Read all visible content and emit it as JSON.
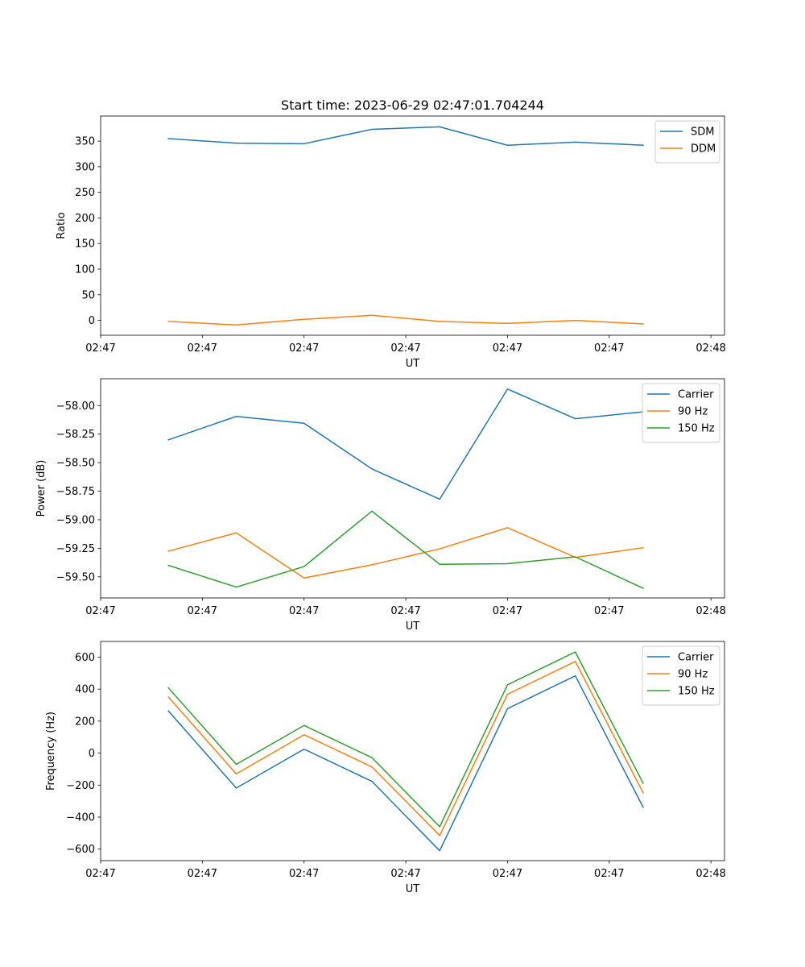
{
  "figure": {
    "title": "Start time: 2023-06-29 02:47:01.704244"
  },
  "colors": {
    "blue": "#1f77b4",
    "orange": "#ff7f0e",
    "green": "#2ca02c"
  },
  "chart_data": [
    {
      "type": "line",
      "title": "Start time: 2023-06-29 02:47:01.704244",
      "xlabel": "UT",
      "ylabel": "Ratio",
      "x": [
        1,
        2,
        3,
        4,
        5,
        6,
        7,
        8
      ],
      "xlim": [
        0,
        9.2
      ],
      "x_ticks": [
        0,
        1.5,
        3,
        4.5,
        6,
        7.5,
        9
      ],
      "x_tick_labels": [
        "02:47",
        "02:47",
        "02:47",
        "02:47",
        "02:47",
        "02:47",
        "02:48"
      ],
      "ylim": [
        -29,
        399
      ],
      "y_ticks": [
        0,
        50,
        100,
        150,
        200,
        250,
        300,
        350
      ],
      "y_tick_labels": [
        "0",
        "50",
        "100",
        "150",
        "200",
        "250",
        "300",
        "350"
      ],
      "legend": "top-right",
      "series": [
        {
          "name": "SDM",
          "color": "#1f77b4",
          "values": [
            355,
            346,
            345,
            373,
            378,
            342,
            348,
            342
          ]
        },
        {
          "name": "DDM",
          "color": "#ff7f0e",
          "values": [
            -2,
            -9,
            2,
            10,
            -2,
            -6,
            0,
            -7
          ]
        }
      ]
    },
    {
      "type": "line",
      "xlabel": "UT",
      "ylabel": "Power (dB)",
      "x": [
        1,
        2,
        3,
        4,
        5,
        6,
        7,
        8
      ],
      "xlim": [
        0,
        9.2
      ],
      "x_ticks": [
        0,
        1.5,
        3,
        4.5,
        6,
        7.5,
        9
      ],
      "x_tick_labels": [
        "02:47",
        "02:47",
        "02:47",
        "02:47",
        "02:47",
        "02:47",
        "02:48"
      ],
      "ylim": [
        -59.685,
        -57.765
      ],
      "y_ticks": [
        -58.0,
        -58.25,
        -58.5,
        -58.75,
        -59.0,
        -59.25,
        -59.5
      ],
      "y_tick_labels": [
        "−58.00",
        "−58.25",
        "−58.50",
        "−58.75",
        "−59.00",
        "−59.25",
        "−59.50"
      ],
      "legend": "top-right",
      "series": [
        {
          "name": "Carrier",
          "color": "#1f77b4",
          "values": [
            -58.3,
            -58.095,
            -58.155,
            -58.555,
            -58.82,
            -57.855,
            -58.115,
            -58.055
          ]
        },
        {
          "name": "90 Hz",
          "color": "#ff7f0e",
          "values": [
            -59.275,
            -59.115,
            -59.51,
            -59.395,
            -59.255,
            -59.07,
            -59.33,
            -59.245
          ]
        },
        {
          "name": "150 Hz",
          "color": "#2ca02c",
          "values": [
            -59.4,
            -59.59,
            -59.41,
            -58.925,
            -59.39,
            -59.385,
            -59.325,
            -59.6
          ]
        }
      ]
    },
    {
      "type": "line",
      "xlabel": "UT",
      "ylabel": "Frequency (Hz)",
      "x": [
        1,
        2,
        3,
        4,
        5,
        6,
        7,
        8
      ],
      "xlim": [
        0,
        9.2
      ],
      "x_ticks": [
        0,
        1.5,
        3,
        4.5,
        6,
        7.5,
        9
      ],
      "x_tick_labels": [
        "02:47",
        "02:47",
        "02:47",
        "02:47",
        "02:47",
        "02:47",
        "02:48"
      ],
      "ylim": [
        -672,
        698
      ],
      "y_ticks": [
        600,
        400,
        200,
        0,
        -200,
        -400,
        -600
      ],
      "y_tick_labels": [
        "600",
        "400",
        "200",
        "0",
        "−200",
        "−400",
        "−600"
      ],
      "legend": "top-right",
      "series": [
        {
          "name": "Carrier",
          "color": "#1f77b4",
          "values": [
            263,
            -218,
            25,
            -176,
            -610,
            278,
            483,
            -338
          ]
        },
        {
          "name": "90 Hz",
          "color": "#ff7f0e",
          "values": [
            350,
            -130,
            115,
            -86,
            -515,
            368,
            573,
            -248
          ]
        },
        {
          "name": "150 Hz",
          "color": "#2ca02c",
          "values": [
            408,
            -70,
            173,
            -28,
            -460,
            427,
            632,
            -188
          ]
        }
      ]
    }
  ]
}
